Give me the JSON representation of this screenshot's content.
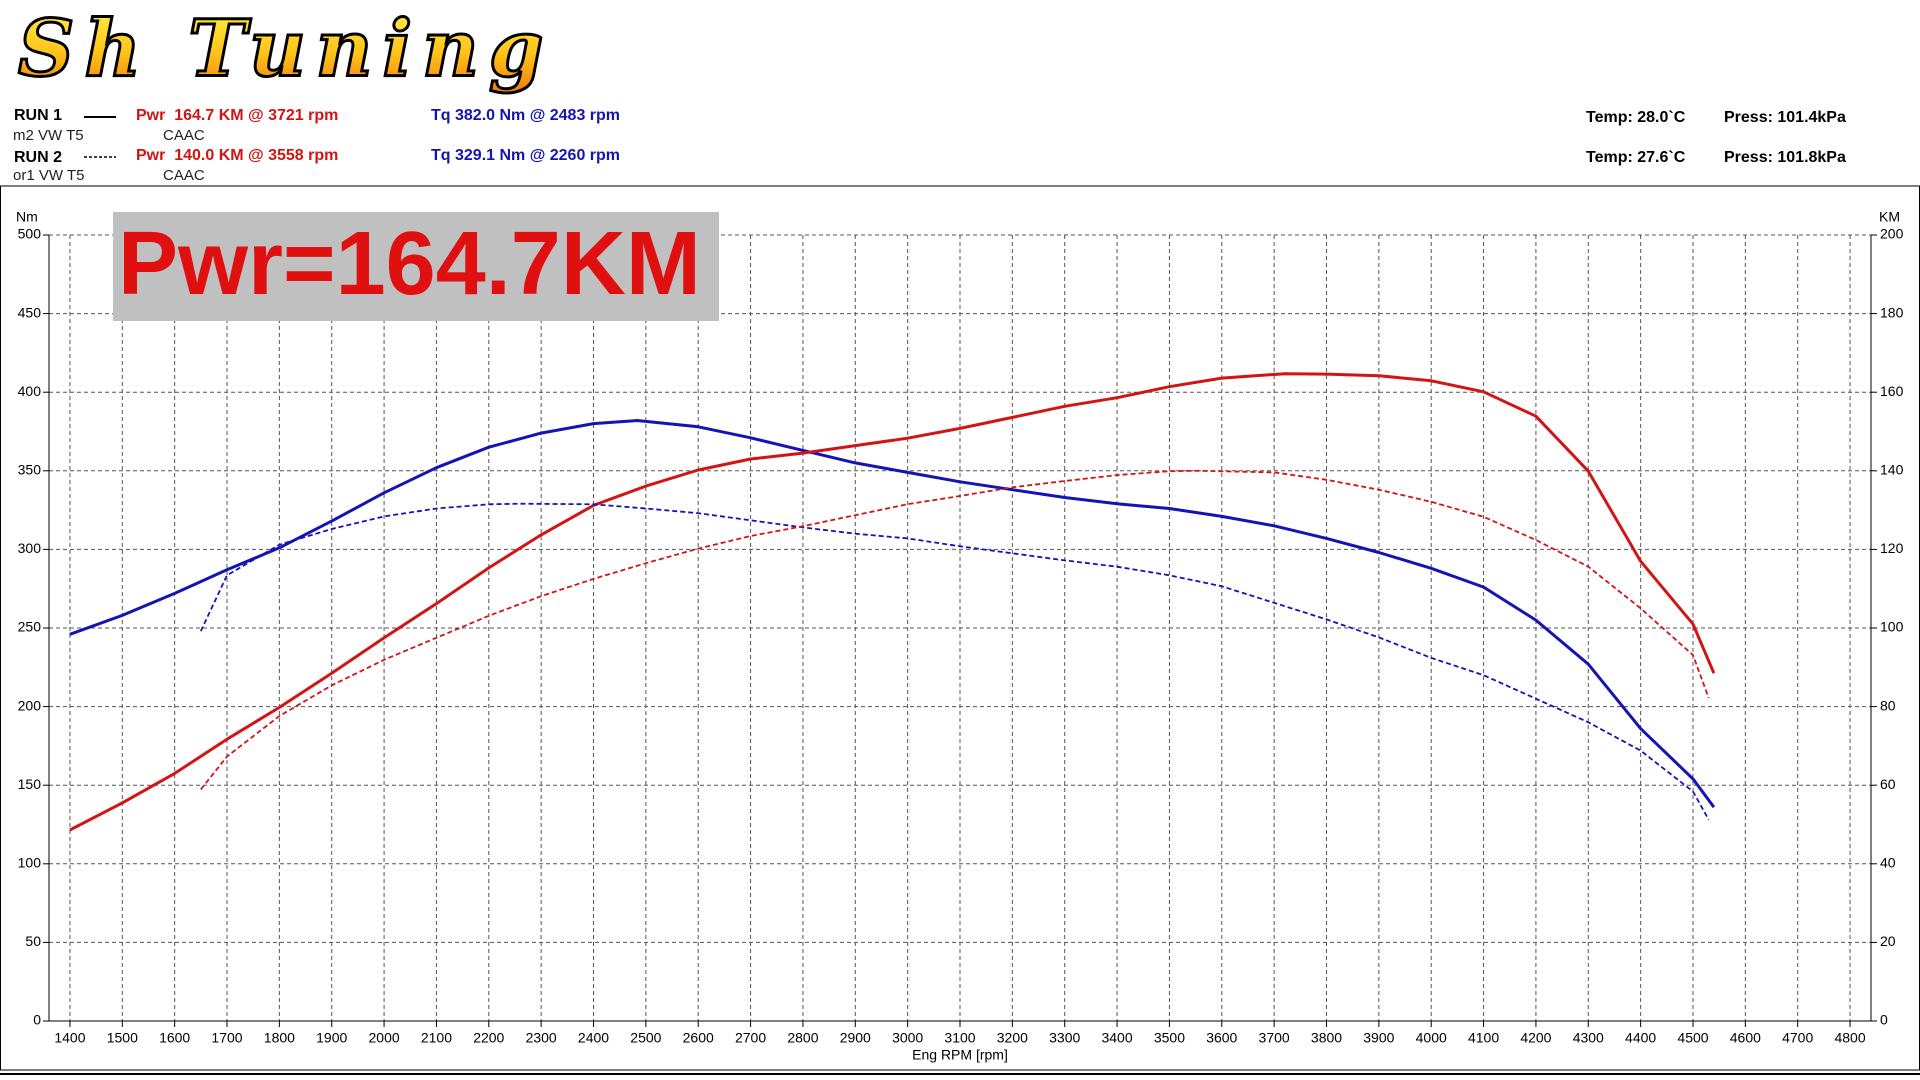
{
  "logo": "Sh Tuning",
  "runs": [
    {
      "label": "RUN 1",
      "vehicle": "m2 VW T5",
      "engine": "CAAC",
      "power": "Pwr  164.7 KM @ 3721 rpm",
      "torque": "Tq 382.0 Nm @ 2483 rpm",
      "temp": "Temp: 28.0`C",
      "press": "Press: 101.4kPa"
    },
    {
      "label": "RUN 2",
      "vehicle": "or1 VW T5",
      "engine": "CAAC",
      "power": "Pwr  140.0 KM @ 3558 rpm",
      "torque": "Tq 329.1 Nm @ 2260 rpm",
      "temp": "Temp: 27.6`C",
      "press": "Press: 101.8kPa"
    }
  ],
  "chart_data": {
    "type": "line",
    "annotation": "Pwr=164.7KM",
    "xlabel": "Eng RPM [rpm]",
    "ylabel": "Nm",
    "y2label": "KM",
    "xlim": [
      1360,
      4840
    ],
    "xticks": [
      1400,
      1500,
      1600,
      1700,
      1800,
      1900,
      2000,
      2100,
      2200,
      2300,
      2400,
      2500,
      2600,
      2700,
      2800,
      2900,
      3000,
      3100,
      3200,
      3300,
      3400,
      3500,
      3600,
      3700,
      3800,
      3900,
      4000,
      4100,
      4200,
      4300,
      4400,
      4500,
      4600,
      4700,
      4800
    ],
    "ylim": [
      0,
      500
    ],
    "yticks": [
      0,
      50,
      100,
      150,
      200,
      250,
      300,
      350,
      400,
      450,
      500
    ],
    "y2lim": [
      0,
      200
    ],
    "y2ticks": [
      0,
      20,
      40,
      60,
      80,
      100,
      120,
      140,
      160,
      180,
      200
    ],
    "grid": true,
    "series": [
      {
        "color": "#1414b4",
        "style": "solid",
        "axis": "y",
        "x": [
          1400,
          1500,
          1600,
          1700,
          1800,
          1900,
          2000,
          2100,
          2200,
          2300,
          2400,
          2483,
          2600,
          2700,
          2800,
          2900,
          3000,
          3100,
          3200,
          3300,
          3400,
          3500,
          3600,
          3700,
          3800,
          3900,
          4000,
          4100,
          4200,
          4300,
          4400,
          4500,
          4540
        ],
        "values": [
          246,
          258,
          272,
          287,
          301,
          318,
          336,
          352,
          365,
          374,
          380,
          382,
          378,
          371,
          363,
          355,
          349,
          343,
          338,
          333,
          329,
          326,
          321,
          315,
          307,
          298,
          288,
          276,
          255,
          227,
          186,
          154,
          136
        ]
      },
      {
        "color": "#d21414",
        "style": "solid",
        "axis": "y2",
        "x": [
          1400,
          1500,
          1600,
          1700,
          1800,
          1900,
          2000,
          2100,
          2200,
          2300,
          2400,
          2500,
          2600,
          2700,
          2800,
          2900,
          3000,
          3100,
          3200,
          3300,
          3400,
          3500,
          3600,
          3721,
          3800,
          3900,
          4000,
          4100,
          4200,
          4300,
          4400,
          4500,
          4540
        ],
        "values": [
          48.6,
          55.5,
          63,
          71.7,
          79.8,
          88.5,
          97.5,
          106.2,
          115.3,
          123.7,
          131.2,
          136.1,
          140.2,
          143,
          144.5,
          146.4,
          148.3,
          150.8,
          153.6,
          156.4,
          158.6,
          161.4,
          163.6,
          164.7,
          164.6,
          164.2,
          162.9,
          160.1,
          153.9,
          139.9,
          117,
          101,
          88.5
        ]
      },
      {
        "color": "#1414b4",
        "style": "dashed",
        "axis": "y",
        "x": [
          1650,
          1700,
          1800,
          1900,
          2000,
          2100,
          2200,
          2260,
          2400,
          2500,
          2600,
          2700,
          2800,
          2900,
          3000,
          3100,
          3200,
          3300,
          3400,
          3500,
          3600,
          3700,
          3800,
          3900,
          4000,
          4100,
          4200,
          4300,
          4400,
          4500,
          4530
        ],
        "values": [
          248,
          283.5,
          303,
          313,
          321,
          326,
          328.7,
          329.1,
          328.7,
          326,
          323,
          318.5,
          314,
          310,
          307,
          302,
          297.5,
          293,
          289,
          283.5,
          276.5,
          266,
          255.5,
          244,
          231,
          220,
          205,
          190,
          172,
          146,
          128
        ]
      },
      {
        "color": "#d21414",
        "style": "dashed",
        "axis": "y2",
        "x": [
          1650,
          1700,
          1800,
          1900,
          2000,
          2100,
          2200,
          2300,
          2400,
          2500,
          2600,
          2700,
          2800,
          2900,
          3000,
          3100,
          3200,
          3300,
          3400,
          3500,
          3558,
          3700,
          3800,
          3900,
          4000,
          4100,
          4200,
          4300,
          4400,
          4500,
          4530
        ],
        "values": [
          58.9,
          67.3,
          77.6,
          85.4,
          91.9,
          97.5,
          103.1,
          108.1,
          112.5,
          116.5,
          120.2,
          123.4,
          125.9,
          128.7,
          131.5,
          133.6,
          135.8,
          137.4,
          138.9,
          139.9,
          140,
          139.6,
          137.7,
          135.2,
          132.1,
          128.3,
          122.4,
          115.6,
          105,
          93.1,
          82.2
        ]
      }
    ]
  }
}
